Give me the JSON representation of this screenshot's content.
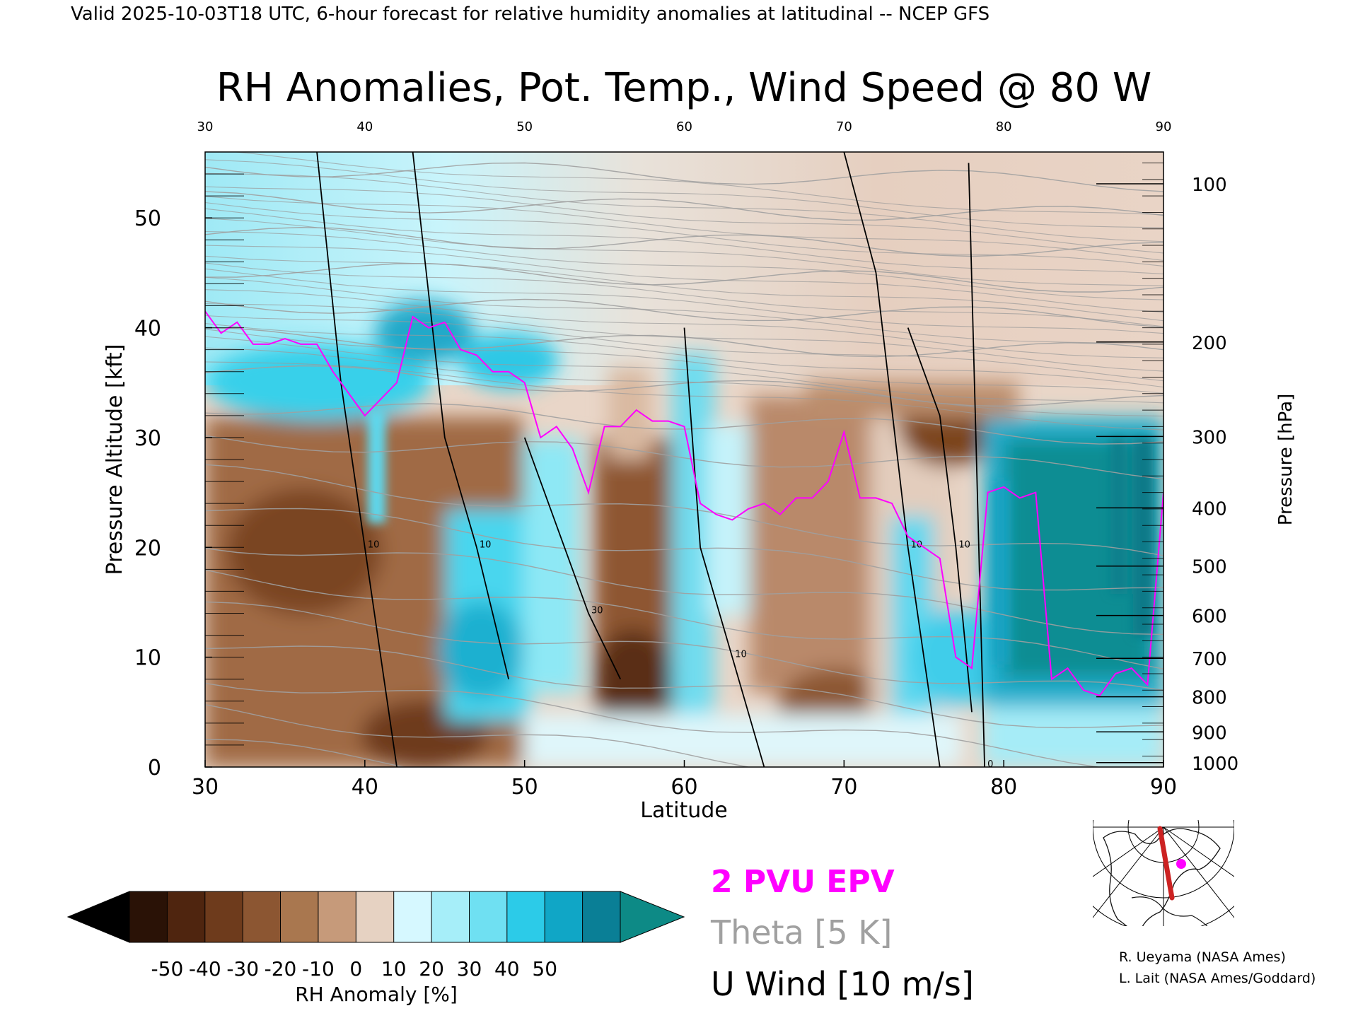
{
  "header": {
    "valid_line": "Valid 2025-10-03T18 UTC, 6-hour forecast for relative humidity anomalies at latitudinal -- NCEP GFS",
    "title": "RH Anomalies, Pot. Temp., Wind Speed @ 80 W"
  },
  "chart_data": {
    "type": "heatmap",
    "title": "RH Anomalies, Pot. Temp., Wind Speed @ 80 W",
    "xlabel": "Latitude",
    "ylabel": "Pressure Altitude [kft]",
    "ylabel_right": "Pressure [hPa]",
    "xlim": [
      30,
      90
    ],
    "ylim": [
      0,
      56
    ],
    "x_ticks": [
      30,
      40,
      50,
      60,
      70,
      80,
      90
    ],
    "y_ticks": [
      0,
      10,
      20,
      30,
      40,
      50
    ],
    "pressure_ticks": [
      {
        "label": "100",
        "kft": 53.1
      },
      {
        "label": "200",
        "kft": 38.7
      },
      {
        "label": "300",
        "kft": 30.1
      },
      {
        "label": "400",
        "kft": 23.6
      },
      {
        "label": "500",
        "kft": 18.3
      },
      {
        "label": "600",
        "kft": 13.8
      },
      {
        "label": "700",
        "kft": 9.9
      },
      {
        "label": "800",
        "kft": 6.4
      },
      {
        "label": "900",
        "kft": 3.2
      },
      {
        "label": "1000",
        "kft": 0.4
      }
    ],
    "colorbar": {
      "label": "RH Anomaly [%]",
      "ticks": [
        "-50",
        "-40",
        "-30",
        "-20",
        "-10",
        "0",
        "10",
        "20",
        "30",
        "40",
        "50"
      ],
      "colors": [
        "#2a1206",
        "#4f250f",
        "#6e3b1c",
        "#8c5632",
        "#a9774f",
        "#c69a7a",
        "#e6d2c2",
        "#d6f8ff",
        "#a6eef9",
        "#6fe0f2",
        "#2ccbe8",
        "#10a6c6",
        "#0a7f96"
      ],
      "under_color": "#000000",
      "over_color": "#0d8a86"
    },
    "fields": [
      {
        "name": "2 PVU EPV",
        "color": "#ff00ff"
      },
      {
        "name": "Theta [5 K]",
        "color": "#a0a0a0"
      },
      {
        "name": "U Wind [10 m/s]",
        "color": "#000000"
      }
    ],
    "pv2_tropopause": [
      [
        30,
        41.5
      ],
      [
        31,
        39.5
      ],
      [
        32,
        40.5
      ],
      [
        33,
        38.5
      ],
      [
        34,
        38.5
      ],
      [
        35,
        39
      ],
      [
        36,
        38.5
      ],
      [
        37,
        38.5
      ],
      [
        38,
        36
      ],
      [
        39,
        34
      ],
      [
        40,
        32
      ],
      [
        41,
        33.5
      ],
      [
        42,
        35
      ],
      [
        43,
        41
      ],
      [
        44,
        40
      ],
      [
        45,
        40.5
      ],
      [
        46,
        38
      ],
      [
        47,
        37.5
      ],
      [
        48,
        36
      ],
      [
        49,
        36
      ],
      [
        50,
        35
      ],
      [
        51,
        30
      ],
      [
        52,
        31
      ],
      [
        53,
        29
      ],
      [
        54,
        25
      ],
      [
        55,
        31
      ],
      [
        56,
        31
      ],
      [
        57,
        32.5
      ],
      [
        58,
        31.5
      ],
      [
        59,
        31.5
      ],
      [
        60,
        31
      ],
      [
        61,
        24
      ],
      [
        62,
        23
      ],
      [
        63,
        22.5
      ],
      [
        64,
        23.5
      ],
      [
        65,
        24
      ],
      [
        66,
        23
      ],
      [
        67,
        24.5
      ],
      [
        68,
        24.5
      ],
      [
        69,
        26
      ],
      [
        70,
        30.5
      ],
      [
        71,
        24.5
      ],
      [
        72,
        24.5
      ],
      [
        73,
        24
      ],
      [
        74,
        21
      ],
      [
        75,
        20
      ],
      [
        76,
        19
      ],
      [
        77,
        10
      ],
      [
        78,
        9
      ],
      [
        79,
        25
      ],
      [
        80,
        25.5
      ],
      [
        81,
        24.5
      ],
      [
        82,
        25
      ],
      [
        83,
        8
      ],
      [
        84,
        9
      ],
      [
        85,
        7
      ],
      [
        86,
        6.5
      ],
      [
        87,
        8.5
      ],
      [
        88,
        9
      ],
      [
        89,
        7.5
      ],
      [
        90,
        25
      ]
    ],
    "theta_levels": [
      250,
      260,
      270,
      280,
      290,
      300,
      310,
      320,
      330,
      340,
      350,
      360,
      370,
      380,
      390,
      400,
      410,
      420
    ],
    "u_wind_contours": [
      {
        "label": "0",
        "x": [
          77.8,
          78.8
        ],
        "y": [
          55,
          0
        ]
      },
      {
        "label": "10",
        "x": [
          37,
          38.5,
          40,
          42
        ],
        "y": [
          56,
          35,
          20,
          0
        ]
      },
      {
        "label": "10",
        "x": [
          43,
          45,
          47,
          49
        ],
        "y": [
          56,
          30,
          20,
          8
        ]
      },
      {
        "label": "30",
        "x": [
          50,
          52,
          54,
          56
        ],
        "y": [
          30,
          22,
          14,
          8
        ]
      },
      {
        "label": "10",
        "x": [
          60,
          61,
          63,
          65
        ],
        "y": [
          40,
          20,
          10,
          0
        ]
      },
      {
        "label": "10",
        "x": [
          74,
          76,
          77,
          78
        ],
        "y": [
          40,
          32,
          20,
          5
        ]
      },
      {
        "label": "10",
        "x": [
          70,
          72,
          74,
          76
        ],
        "y": [
          56,
          45,
          20,
          0
        ]
      }
    ],
    "rh_anomaly_regions": [
      {
        "lat_range": [
          30,
          50
        ],
        "kft_range": [
          0,
          30
        ],
        "anomaly_pct": -30
      },
      {
        "lat_range": [
          30,
          50
        ],
        "kft_range": [
          34,
          42
        ],
        "anomaly_pct": 25
      },
      {
        "lat_range": [
          30,
          90
        ],
        "kft_range": [
          42,
          56
        ],
        "anomaly_pct": 5
      },
      {
        "lat_range": [
          54,
          62
        ],
        "kft_range": [
          0,
          32
        ],
        "anomaly_pct": -20
      },
      {
        "lat_range": [
          62,
          78
        ],
        "kft_range": [
          3,
          31
        ],
        "anomaly_pct": -15
      },
      {
        "lat_range": [
          72,
          78
        ],
        "kft_range": [
          28,
          36
        ],
        "anomaly_pct": -40
      },
      {
        "lat_range": [
          79,
          90
        ],
        "kft_range": [
          8,
          30
        ],
        "anomaly_pct": 45
      },
      {
        "lat_range": [
          45,
          58
        ],
        "kft_range": [
          0,
          30
        ],
        "anomaly_pct": 25
      }
    ]
  },
  "legend": {
    "pv_label": "2 PVU EPV",
    "theta_label": "Theta [5 K]",
    "wind_label": "U Wind [10 m/s]"
  },
  "credits": {
    "line1": "R. Ueyama (NASA Ames)",
    "line2": "L. Lait (NASA Ames/Goddard)"
  },
  "colors": {
    "pv": "#ff00ff",
    "theta": "#a0a0a0",
    "wind": "#000000",
    "track": "#cc2222"
  },
  "inset_map": {
    "icon": "polar-map-icon"
  }
}
